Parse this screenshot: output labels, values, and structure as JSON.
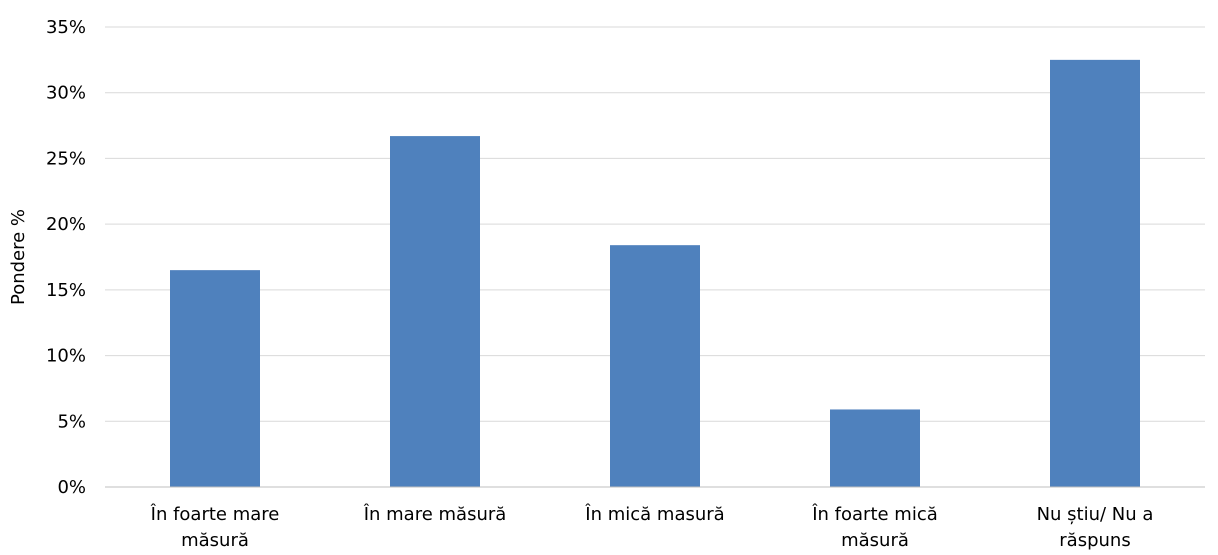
{
  "chart_data": {
    "type": "bar",
    "categories": [
      [
        "În foarte mare",
        "măsură"
      ],
      [
        "În mare măsură"
      ],
      [
        "În mică masură"
      ],
      [
        "În foarte mică",
        "măsură"
      ],
      [
        "Nu știu/ Nu a",
        "răspuns"
      ]
    ],
    "values": [
      16.5,
      26.7,
      18.4,
      5.9,
      32.5
    ],
    "ylabel": "Pondere %",
    "xlabel": "",
    "title": "",
    "ylim": [
      0,
      35
    ],
    "y_ticks": [
      0,
      5,
      10,
      15,
      20,
      25,
      30,
      35
    ],
    "y_tick_suffix": "%",
    "bar_color": "#4f81bd",
    "grid": true,
    "legend": "none"
  }
}
